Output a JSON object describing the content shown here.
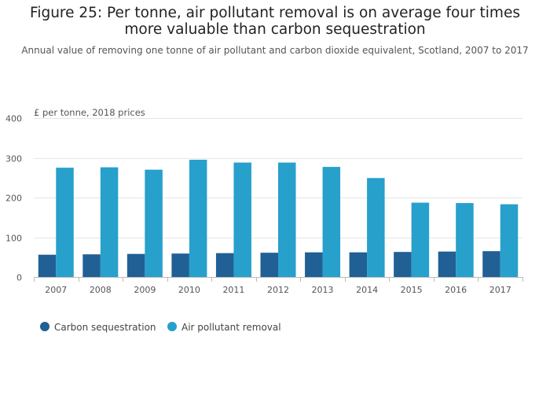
{
  "title": "Figure 25: Per tonne, air pollutant removal is on average four times more valuable than carbon sequestration",
  "subtitle": "Annual value of removing one tonne of air pollutant and carbon dioxide equivalent, Scotland, 2007 to 2017",
  "chart_data": {
    "type": "bar",
    "title": "Figure 25: Per tonne, air pollutant removal is on average four times more valuable than carbon sequestration",
    "subtitle": "Annual value of removing one tonne of air pollutant and carbon dioxide equivalent, Scotland, 2007 to 2017",
    "ylabel": "£ per tonne, 2018 prices",
    "xlabel": "",
    "ylim": [
      0,
      400
    ],
    "yticks": [
      0,
      100,
      200,
      300,
      400
    ],
    "grid": true,
    "legend_position": "bottom-left",
    "categories": [
      "2007",
      "2008",
      "2009",
      "2010",
      "2011",
      "2012",
      "2013",
      "2014",
      "2015",
      "2016",
      "2017"
    ],
    "series": [
      {
        "name": "Carbon sequestration",
        "color": "#206095",
        "values": [
          56,
          57,
          58,
          59,
          60,
          61,
          62,
          62,
          63,
          64,
          65
        ]
      },
      {
        "name": "Air pollutant removal",
        "color": "#27A0CC",
        "values": [
          275,
          276,
          270,
          295,
          288,
          288,
          277,
          249,
          187,
          186,
          183
        ]
      }
    ]
  }
}
